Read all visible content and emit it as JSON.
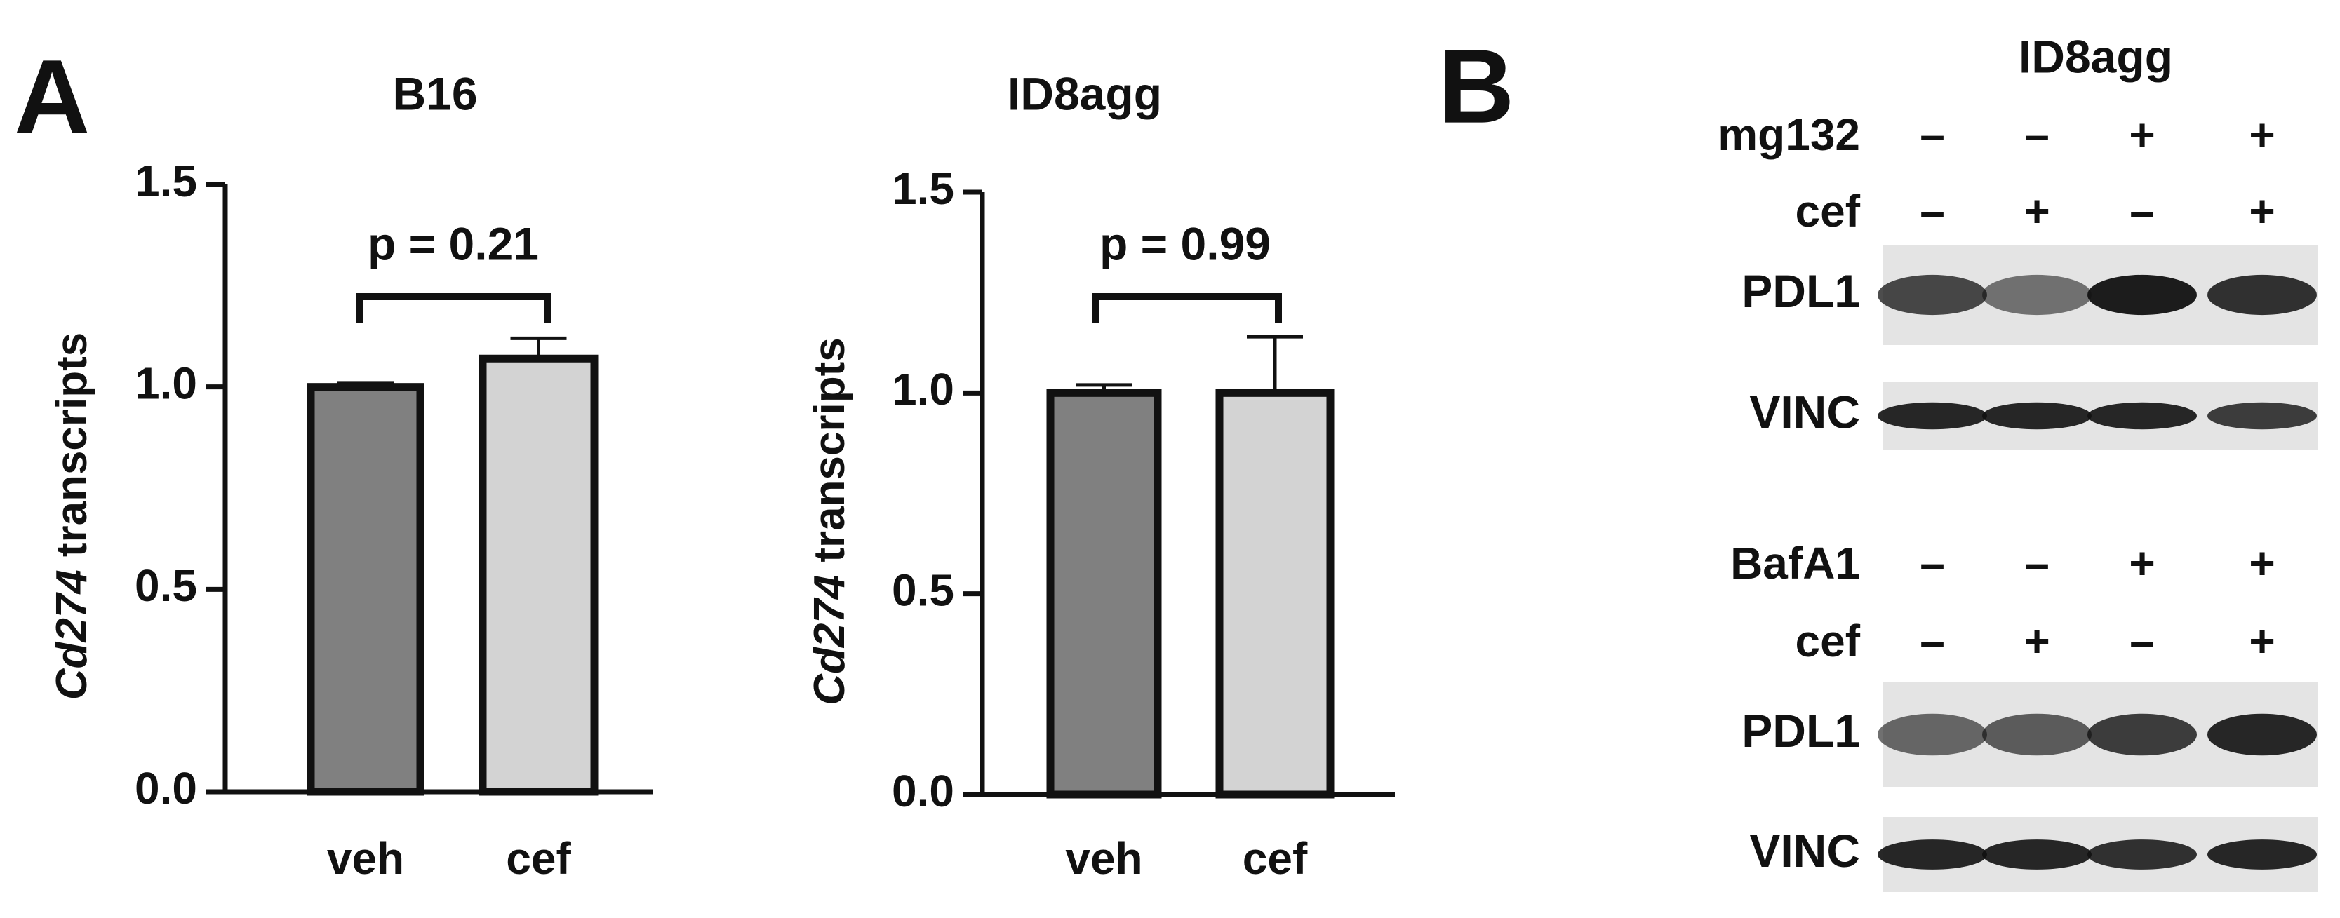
{
  "panel_labels": [
    "A",
    "B"
  ],
  "chart_data": [
    {
      "type": "bar",
      "title": "B16",
      "categories": [
        "veh",
        "cef"
      ],
      "values": [
        1.0,
        1.07
      ],
      "errors": [
        0.01,
        0.05
      ],
      "colors": [
        "#808080",
        "#d3d3d3"
      ],
      "ylim": [
        0,
        1.5
      ],
      "yticks": [
        {
          "value": 0,
          "label": "0.0"
        },
        {
          "value": 0.5,
          "label": "0.5"
        },
        {
          "value": 1,
          "label": "1.0"
        },
        {
          "value": 1.5,
          "label": "1.5"
        }
      ],
      "ylabel": {
        "italic": "Cd274",
        "text": "transcripts"
      },
      "annotation": "p = 0.21"
    },
    {
      "type": "bar",
      "title": "ID8agg",
      "categories": [
        "veh",
        "cef"
      ],
      "values": [
        1.0,
        1.0
      ],
      "errors": [
        0.02,
        0.14
      ],
      "colors": [
        "#808080",
        "#d3d3d3"
      ],
      "ylim": [
        0,
        1.5
      ],
      "yticks": [
        {
          "value": 0,
          "label": "0.0"
        },
        {
          "value": 0.5,
          "label": "0.5"
        },
        {
          "value": 1,
          "label": "1.0"
        },
        {
          "value": 1.5,
          "label": "1.5"
        }
      ],
      "ylabel": {
        "italic": "Cd274",
        "text": "transcripts"
      },
      "annotation": "p = 0.99"
    }
  ],
  "blot": {
    "title": "ID8agg",
    "groups": [
      {
        "treatments": [
          {
            "name": "mg132",
            "signs": [
              "–",
              "–",
              "+",
              "+"
            ]
          },
          {
            "name": "cef",
            "signs": [
              "–",
              "+",
              "–",
              "+"
            ]
          }
        ],
        "bands": [
          "PDL1",
          "VINC"
        ]
      },
      {
        "treatments": [
          {
            "name": "BafA1",
            "signs": [
              "–",
              "–",
              "+",
              "+"
            ]
          },
          {
            "name": "cef",
            "signs": [
              "–",
              "+",
              "–",
              "+"
            ]
          }
        ],
        "bands": [
          "PDL1",
          "VINC"
        ]
      }
    ]
  }
}
